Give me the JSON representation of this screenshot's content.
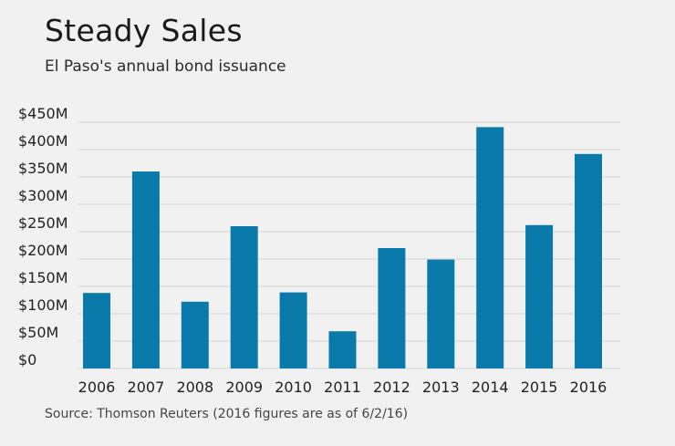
{
  "title": "Steady Sales",
  "subtitle": "El Paso's annual bond issuance",
  "source": "Source: Thomson Reuters (2016 figures are as of 6/2/16)",
  "colors": {
    "bar": "#0a7aaa",
    "grid": "#d2d2d2",
    "background": "#f0f1f0"
  },
  "chart_data": {
    "type": "bar",
    "categories": [
      "2006",
      "2007",
      "2008",
      "2009",
      "2010",
      "2011",
      "2012",
      "2013",
      "2014",
      "2015",
      "2016"
    ],
    "values": [
      138,
      360,
      122,
      260,
      139,
      68,
      220,
      199,
      441,
      262,
      392
    ],
    "title": "Steady Sales",
    "subtitle": "El Paso's annual bond issuance",
    "xlabel": "",
    "ylabel": "",
    "unit": "$M",
    "ylim": [
      0,
      450
    ],
    "yticks": [
      0,
      50,
      100,
      150,
      200,
      250,
      300,
      350,
      400,
      450
    ],
    "ytick_labels": [
      "$0",
      "$50M",
      "$100M",
      "$150M",
      "$200M",
      "$250M",
      "$300M",
      "$350M",
      "$400M",
      "$450M"
    ],
    "grid": true,
    "legend": "none"
  }
}
